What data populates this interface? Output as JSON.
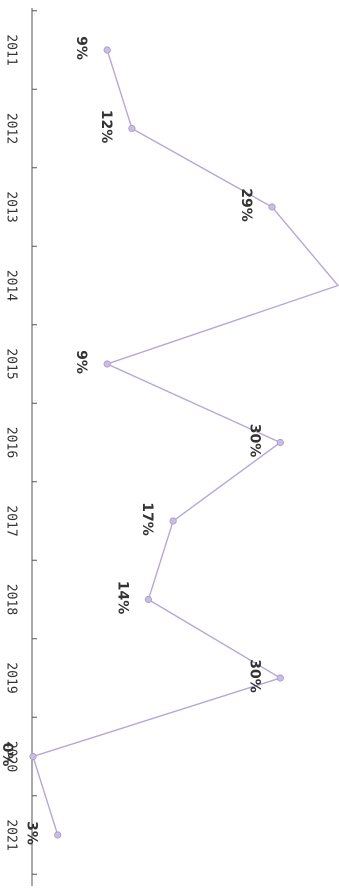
{
  "chart_data": {
    "type": "line",
    "title": "",
    "xlabel": "",
    "ylabel": "",
    "orientation": "rotated-90-clockwise",
    "x": [
      "2011",
      "2012",
      "2013",
      "2014",
      "2015",
      "2016",
      "2017",
      "2018",
      "2019",
      "2020",
      "2021"
    ],
    "series": [
      {
        "values": [
          9,
          12,
          29,
          37,
          9,
          30,
          17,
          14,
          30,
          0,
          3
        ],
        "labels": [
          "9%",
          "12%",
          "29%",
          "",
          "9%",
          "30%",
          "17%",
          "14%",
          "30%",
          "0%",
          "3%"
        ],
        "color": "#b7a7d6"
      }
    ],
    "ylim": [
      0,
      37
    ],
    "grid": false,
    "legend": "none"
  }
}
